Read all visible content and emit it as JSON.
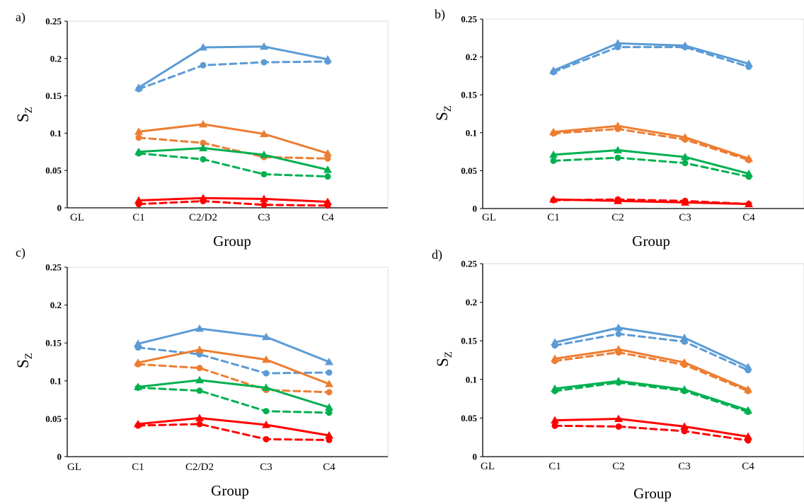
{
  "chart_data": [
    {
      "type": "line",
      "panel_label": "a)",
      "categories": [
        "GL",
        "C1",
        "C2/D2",
        "C3",
        "C4"
      ],
      "xlabel": "Group",
      "ylabel": "S",
      "ylabel_sub": "Z",
      "ylim": [
        0,
        0.25
      ],
      "yticks": [
        "0",
        "0.05",
        "0.1",
        "0.15",
        "0.2",
        "0.25"
      ],
      "grid": false,
      "series": [
        {
          "color": "#5B9BD5",
          "style": "solid",
          "marker": "triangle",
          "values": [
            null,
            0.161,
            0.215,
            0.216,
            0.199
          ]
        },
        {
          "color": "#5B9BD5",
          "style": "dashed",
          "marker": "circle",
          "values": [
            null,
            0.159,
            0.191,
            0.195,
            0.196
          ]
        },
        {
          "color": "#ED7D31",
          "style": "solid",
          "marker": "triangle",
          "values": [
            null,
            0.102,
            0.112,
            0.099,
            0.073
          ]
        },
        {
          "color": "#ED7D31",
          "style": "dashed",
          "marker": "circle",
          "values": [
            null,
            0.094,
            0.087,
            0.068,
            0.066
          ]
        },
        {
          "color": "#00B050",
          "style": "solid",
          "marker": "triangle",
          "values": [
            null,
            0.075,
            0.08,
            0.071,
            0.051
          ]
        },
        {
          "color": "#00B050",
          "style": "dashed",
          "marker": "circle",
          "values": [
            null,
            0.073,
            0.065,
            0.045,
            0.042
          ]
        },
        {
          "color": "#FF0000",
          "style": "solid",
          "marker": "triangle",
          "values": [
            null,
            0.01,
            0.013,
            0.012,
            0.008
          ]
        },
        {
          "color": "#FF0000",
          "style": "dashed",
          "marker": "circle",
          "values": [
            null,
            0.005,
            0.009,
            0.004,
            0.003
          ]
        }
      ]
    },
    {
      "type": "line",
      "panel_label": "b)",
      "categories": [
        "GL",
        "C1",
        "C2",
        "C3",
        "C4"
      ],
      "xlabel": "Group",
      "ylabel": "S",
      "ylabel_sub": "Z",
      "ylim": [
        0,
        0.25
      ],
      "yticks": [
        "0",
        "0.05",
        "0.1",
        "0.15",
        "0.2",
        "0.25"
      ],
      "grid": false,
      "series": [
        {
          "color": "#5B9BD5",
          "style": "solid",
          "marker": "triangle",
          "values": [
            null,
            0.182,
            0.218,
            0.215,
            0.191
          ]
        },
        {
          "color": "#5B9BD5",
          "style": "dashed",
          "marker": "circle",
          "values": [
            null,
            0.18,
            0.213,
            0.213,
            0.187
          ]
        },
        {
          "color": "#ED7D31",
          "style": "solid",
          "marker": "triangle",
          "values": [
            null,
            0.101,
            0.109,
            0.094,
            0.066
          ]
        },
        {
          "color": "#ED7D31",
          "style": "dashed",
          "marker": "circle",
          "values": [
            null,
            0.099,
            0.105,
            0.091,
            0.064
          ]
        },
        {
          "color": "#00B050",
          "style": "solid",
          "marker": "triangle",
          "values": [
            null,
            0.071,
            0.077,
            0.068,
            0.046
          ]
        },
        {
          "color": "#00B050",
          "style": "dashed",
          "marker": "circle",
          "values": [
            null,
            0.063,
            0.067,
            0.06,
            0.042
          ]
        },
        {
          "color": "#FF0000",
          "style": "solid",
          "marker": "triangle",
          "values": [
            null,
            0.012,
            0.01,
            0.008,
            0.006
          ]
        },
        {
          "color": "#FF0000",
          "style": "dashed",
          "marker": "circle",
          "values": [
            null,
            0.011,
            0.012,
            0.01,
            0.006
          ]
        }
      ]
    },
    {
      "type": "line",
      "panel_label": "c)",
      "categories": [
        "GL",
        "C1",
        "C2/D2",
        "C3",
        "C4"
      ],
      "xlabel": "Group",
      "ylabel": "S",
      "ylabel_sub": "Z",
      "ylim": [
        0,
        0.25
      ],
      "yticks": [
        "0",
        "0.05",
        "0.1",
        "0.15",
        "0.2",
        "0.25"
      ],
      "grid": false,
      "series": [
        {
          "color": "#5B9BD5",
          "style": "solid",
          "marker": "triangle",
          "values": [
            null,
            0.149,
            0.169,
            0.158,
            0.125
          ]
        },
        {
          "color": "#5B9BD5",
          "style": "dashed",
          "marker": "circle",
          "values": [
            null,
            0.144,
            0.135,
            0.11,
            0.111
          ]
        },
        {
          "color": "#ED7D31",
          "style": "solid",
          "marker": "triangle",
          "values": [
            null,
            0.124,
            0.141,
            0.128,
            0.096
          ]
        },
        {
          "color": "#ED7D31",
          "style": "dashed",
          "marker": "circle",
          "values": [
            null,
            0.122,
            0.117,
            0.088,
            0.085
          ]
        },
        {
          "color": "#00B050",
          "style": "solid",
          "marker": "triangle",
          "values": [
            null,
            0.092,
            0.101,
            0.091,
            0.065
          ]
        },
        {
          "color": "#00B050",
          "style": "dashed",
          "marker": "circle",
          "values": [
            null,
            0.091,
            0.087,
            0.06,
            0.058
          ]
        },
        {
          "color": "#FF0000",
          "style": "solid",
          "marker": "triangle",
          "values": [
            null,
            0.043,
            0.051,
            0.042,
            0.028
          ]
        },
        {
          "color": "#FF0000",
          "style": "dashed",
          "marker": "circle",
          "values": [
            null,
            0.041,
            0.043,
            0.023,
            0.022
          ]
        }
      ]
    },
    {
      "type": "line",
      "panel_label": "d)",
      "categories": [
        "GL",
        "C1",
        "C2",
        "C3",
        "C4"
      ],
      "xlabel": "Group",
      "ylabel": "S",
      "ylabel_sub": "Z",
      "ylim": [
        0,
        0.25
      ],
      "yticks": [
        "0",
        "0.05",
        "0.1",
        "0.15",
        "0.2",
        "0.25"
      ],
      "grid": false,
      "series": [
        {
          "color": "#5B9BD5",
          "style": "solid",
          "marker": "triangle",
          "values": [
            null,
            0.148,
            0.167,
            0.154,
            0.116
          ]
        },
        {
          "color": "#5B9BD5",
          "style": "dashed",
          "marker": "circle",
          "values": [
            null,
            0.144,
            0.159,
            0.149,
            0.112
          ]
        },
        {
          "color": "#ED7D31",
          "style": "solid",
          "marker": "triangle",
          "values": [
            null,
            0.127,
            0.139,
            0.122,
            0.087
          ]
        },
        {
          "color": "#ED7D31",
          "style": "dashed",
          "marker": "circle",
          "values": [
            null,
            0.124,
            0.135,
            0.119,
            0.085
          ]
        },
        {
          "color": "#00B050",
          "style": "solid",
          "marker": "triangle",
          "values": [
            null,
            0.088,
            0.098,
            0.087,
            0.06
          ]
        },
        {
          "color": "#00B050",
          "style": "dashed",
          "marker": "circle",
          "values": [
            null,
            0.085,
            0.096,
            0.085,
            0.058
          ]
        },
        {
          "color": "#FF0000",
          "style": "solid",
          "marker": "triangle",
          "values": [
            null,
            0.047,
            0.049,
            0.039,
            0.026
          ]
        },
        {
          "color": "#FF0000",
          "style": "dashed",
          "marker": "circle",
          "values": [
            null,
            0.04,
            0.039,
            0.033,
            0.021
          ]
        }
      ]
    }
  ]
}
